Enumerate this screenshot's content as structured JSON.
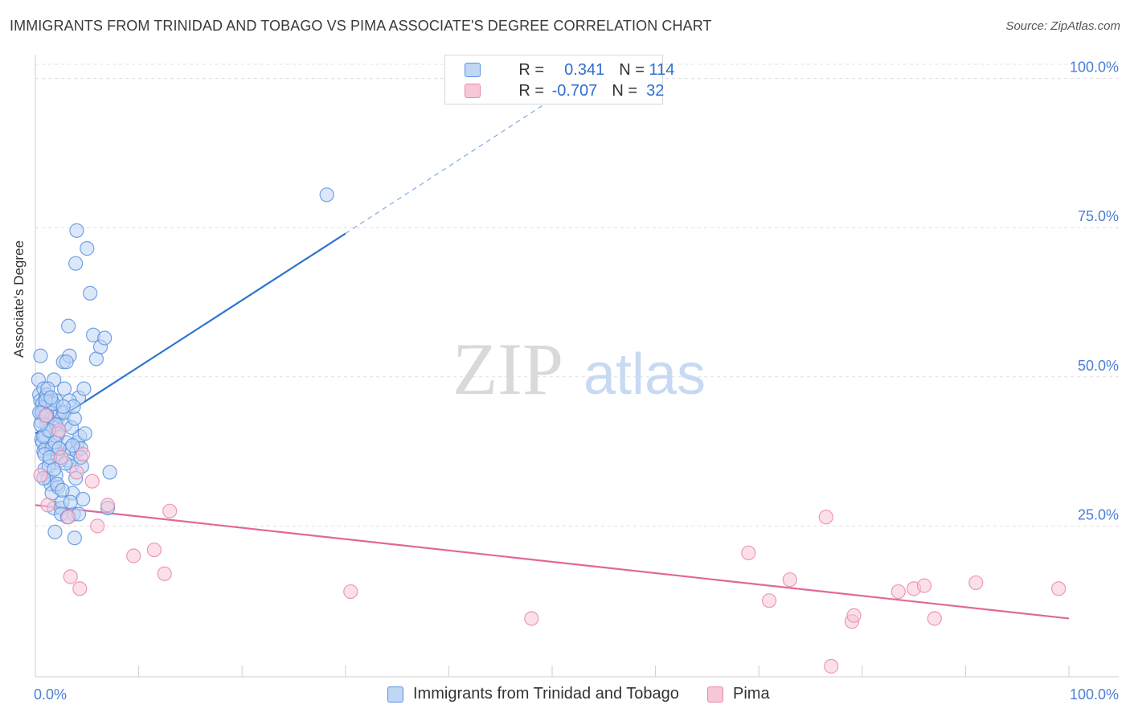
{
  "title": "IMMIGRANTS FROM TRINIDAD AND TOBAGO VS PIMA ASSOCIATE'S DEGREE CORRELATION CHART",
  "source": "Source: ZipAtlas.com",
  "watermark": {
    "zip": "ZIP",
    "atlas": "atlas"
  },
  "colors": {
    "blue": "#5b93e0",
    "blue_fill": "#c0d6f4",
    "blue_line": "#2f73d0",
    "pink": "#e88aab",
    "pink_fill": "#f7c7d8",
    "pink_line": "#e0689a",
    "axis_text": "#4a7fd4",
    "grid": "#e0e0e0"
  },
  "legend_top": {
    "rows": [
      {
        "r_label": "R = ",
        "r_value": " 0.341",
        "n_label": "N = ",
        "n_value": "114"
      },
      {
        "r_label": "R = ",
        "r_value": "-0.707",
        "n_label": "N = ",
        "n_value": " 32"
      }
    ]
  },
  "chart_data": {
    "type": "scatter",
    "title": "IMMIGRANTS FROM TRINIDAD AND TOBAGO VS PIMA ASSOCIATE'S DEGREE CORRELATION CHART",
    "xlabel": "",
    "ylabel": "Associate's Degree",
    "xlim": [
      0,
      100
    ],
    "ylim": [
      0,
      105
    ],
    "x_tick_labels": [
      "0.0%",
      "100.0%"
    ],
    "y_ticks": [
      25,
      50,
      75,
      100
    ],
    "y_tick_labels": [
      "25.0%",
      "50.0%",
      "75.0%",
      "100.0%"
    ],
    "grid": "horizontal dashed",
    "legend_position": "bottom-center",
    "series": [
      {
        "name": "Immigrants from Trinidad and Tobago",
        "color": "#5b93e0",
        "R": 0.341,
        "N": 114,
        "trend": {
          "x0": 0,
          "y0": 40.5,
          "x1": 30,
          "y1": 74.0,
          "dashed_to_x": 50,
          "dashed_to_y": 96.5
        },
        "points": [
          [
            0.3,
            49.5
          ],
          [
            0.4,
            47
          ],
          [
            0.5,
            46
          ],
          [
            0.6,
            44
          ],
          [
            0.7,
            45.5
          ],
          [
            0.8,
            48
          ],
          [
            0.9,
            43.5
          ],
          [
            1.0,
            46.5
          ],
          [
            1.1,
            42
          ],
          [
            1.2,
            44.5
          ],
          [
            0.5,
            53.5
          ],
          [
            0.6,
            39.5
          ],
          [
            0.7,
            39
          ],
          [
            0.8,
            37.5
          ],
          [
            0.9,
            34.5
          ],
          [
            1.0,
            40
          ],
          [
            1.1,
            43
          ],
          [
            1.3,
            45.5
          ],
          [
            1.4,
            36
          ],
          [
            1.5,
            41
          ],
          [
            1.6,
            46
          ],
          [
            1.7,
            44
          ],
          [
            1.8,
            49.5
          ],
          [
            1.9,
            42.5
          ],
          [
            2.0,
            46
          ],
          [
            2.1,
            40
          ],
          [
            2.2,
            38
          ],
          [
            1.2,
            33
          ],
          [
            1.3,
            35
          ],
          [
            1.5,
            32
          ],
          [
            1.6,
            30.5
          ],
          [
            1.8,
            28
          ],
          [
            1.9,
            24
          ],
          [
            2.0,
            33.5
          ],
          [
            2.1,
            37
          ],
          [
            2.2,
            31.5
          ],
          [
            2.3,
            43.5
          ],
          [
            2.4,
            44
          ],
          [
            2.5,
            28
          ],
          [
            2.6,
            29
          ],
          [
            2.7,
            52.5
          ],
          [
            2.8,
            48
          ],
          [
            2.9,
            42
          ],
          [
            3.0,
            39
          ],
          [
            3.1,
            36
          ],
          [
            3.2,
            58.5
          ],
          [
            3.3,
            53.5
          ],
          [
            3.4,
            38
          ],
          [
            3.5,
            35
          ],
          [
            3.6,
            30.5
          ],
          [
            3.7,
            27
          ],
          [
            3.8,
            23
          ],
          [
            3.9,
            33
          ],
          [
            4.0,
            37.5
          ],
          [
            4.1,
            39
          ],
          [
            4.2,
            46.5
          ],
          [
            4.3,
            40
          ],
          [
            4.4,
            38
          ],
          [
            4.5,
            35
          ],
          [
            4.6,
            29.5
          ],
          [
            4.7,
            48
          ],
          [
            4.8,
            40.5
          ],
          [
            5.0,
            71.5
          ],
          [
            5.3,
            64
          ],
          [
            5.6,
            57
          ],
          [
            5.9,
            53
          ],
          [
            6.3,
            55
          ],
          [
            6.7,
            56.5
          ],
          [
            7.0,
            28
          ],
          [
            7.2,
            34
          ],
          [
            3.9,
            69
          ],
          [
            4.0,
            74.5
          ],
          [
            3.0,
            52.5
          ],
          [
            2.5,
            27
          ],
          [
            1.0,
            38
          ],
          [
            0.8,
            40
          ],
          [
            0.9,
            45
          ],
          [
            1.1,
            47
          ],
          [
            1.4,
            44
          ],
          [
            1.7,
            45.5
          ],
          [
            2.0,
            42
          ],
          [
            2.2,
            40.5
          ],
          [
            1.3,
            41
          ],
          [
            1.6,
            38
          ],
          [
            2.4,
            36
          ],
          [
            0.6,
            42.5
          ],
          [
            0.7,
            44
          ],
          [
            1.0,
            46
          ],
          [
            1.2,
            48
          ],
          [
            1.5,
            46.5
          ],
          [
            2.8,
            44
          ],
          [
            3.3,
            46
          ],
          [
            3.5,
            41.5
          ],
          [
            3.8,
            43
          ],
          [
            0.4,
            44
          ],
          [
            0.5,
            42
          ],
          [
            0.9,
            37
          ],
          [
            1.8,
            34.5
          ],
          [
            2.1,
            32
          ],
          [
            2.6,
            31
          ],
          [
            3.1,
            26.5
          ],
          [
            3.4,
            29
          ],
          [
            3.6,
            38.5
          ],
          [
            4.2,
            27
          ],
          [
            2.9,
            35.5
          ],
          [
            1.9,
            39
          ],
          [
            0.8,
            33
          ],
          [
            1.4,
            36.5
          ],
          [
            2.3,
            38
          ],
          [
            3.7,
            45
          ],
          [
            28.2,
            80.5
          ],
          [
            4.4,
            36.5
          ],
          [
            1.1,
            43.5
          ],
          [
            2.7,
            45
          ]
        ]
      },
      {
        "name": "Pima",
        "color": "#e88aab",
        "R": -0.707,
        "N": 32,
        "trend": {
          "x0": 0,
          "y0": 28.5,
          "x1": 100,
          "y1": 9.5
        },
        "points": [
          [
            0.5,
            33.5
          ],
          [
            1.0,
            43.5
          ],
          [
            1.2,
            28.5
          ],
          [
            2.3,
            41
          ],
          [
            2.5,
            36.5
          ],
          [
            3.2,
            26.5
          ],
          [
            3.4,
            16.5
          ],
          [
            4.0,
            34
          ],
          [
            4.3,
            14.5
          ],
          [
            4.6,
            37
          ],
          [
            5.5,
            32.5
          ],
          [
            6.0,
            25
          ],
          [
            7.0,
            28.5
          ],
          [
            9.5,
            20
          ],
          [
            11.5,
            21
          ],
          [
            12.5,
            17
          ],
          [
            13.0,
            27.5
          ],
          [
            30.5,
            14
          ],
          [
            48.0,
            9.5
          ],
          [
            69.0,
            20.5
          ],
          [
            71.0,
            12.5
          ],
          [
            73.0,
            16
          ],
          [
            76.5,
            26.5
          ],
          [
            77.0,
            1.5
          ],
          [
            79.0,
            9
          ],
          [
            79.2,
            10
          ],
          [
            83.5,
            14
          ],
          [
            85.0,
            14.5
          ],
          [
            86.0,
            15
          ],
          [
            87.0,
            9.5
          ],
          [
            91.0,
            15.5
          ],
          [
            99.0,
            14.5
          ]
        ]
      }
    ]
  },
  "bottom_legend": [
    {
      "label": "Immigrants from Trinidad and Tobago"
    },
    {
      "label": "Pima"
    }
  ]
}
